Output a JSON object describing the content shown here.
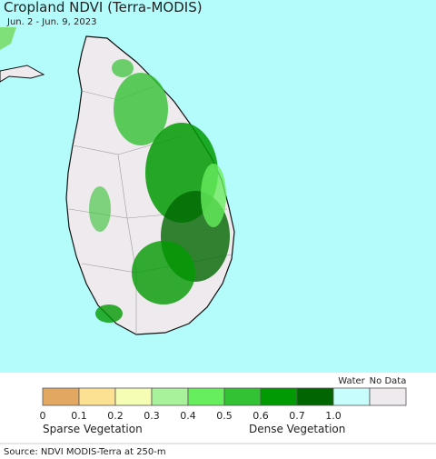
{
  "header": {
    "title": "Cropland NDVI (Terra-MODIS)",
    "subtitle": "Jun. 2 - Jun. 9, 2023"
  },
  "legend": {
    "colors": [
      "#e2a862",
      "#fde192",
      "#f5fcb4",
      "#a7f29b",
      "#66ee5d",
      "#33c233",
      "#029a02",
      "#016601",
      "#c8fdfd",
      "#eeeaee"
    ],
    "ticks": [
      "0",
      "0.1",
      "0.2",
      "0.3",
      "0.4",
      "0.5",
      "0.6",
      "0.7",
      "1.0"
    ],
    "water_label": "Water",
    "no_data_label": "No Data",
    "sparse_label": "Sparse Vegetation",
    "dense_label": "Dense Vegetation"
  },
  "source": "Source: NDVI MODIS-Terra at 250-m"
}
